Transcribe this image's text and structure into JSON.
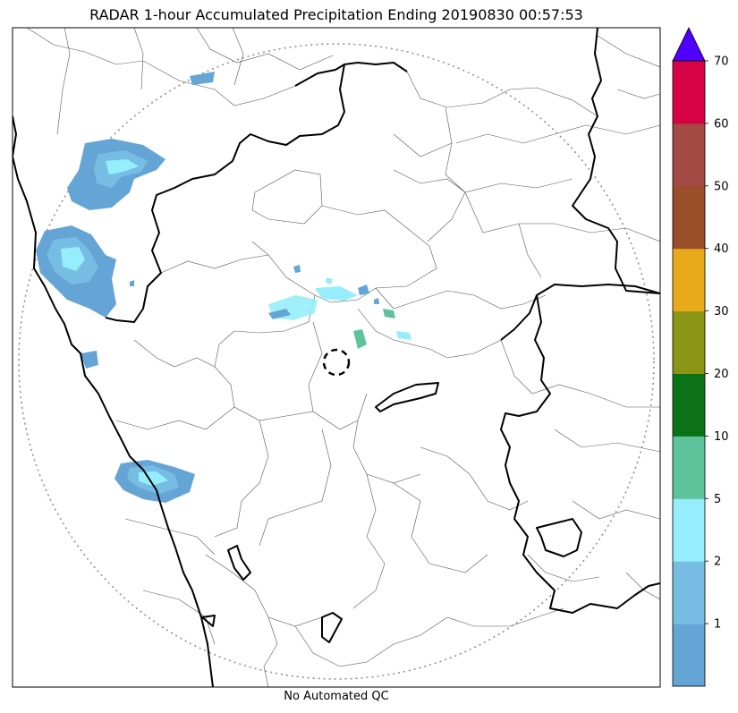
{
  "title": "RADAR 1-hour Accumulated Precipitation Ending 20190830 00:57:53",
  "footer": "No Automated QC",
  "colorbar": {
    "ticks": [
      "1",
      "2",
      "5",
      "10",
      "20",
      "30",
      "40",
      "50",
      "60",
      "70"
    ],
    "colors": [
      "#65a5d6",
      "#77bde3",
      "#96eefc",
      "#5ec39b",
      "#0c7218",
      "#8b9515",
      "#e8a91b",
      "#9a4e2a",
      "#a44a44",
      "#d60245"
    ],
    "extend_color": "#5000fe"
  },
  "colors": {
    "precip_light": "#65a5d6",
    "precip_mid": "#77bde3",
    "precip_heavy": "#96eefc",
    "state_border": "#000000",
    "district_border": "#555555",
    "range_ring": "#8a8a8a"
  }
}
